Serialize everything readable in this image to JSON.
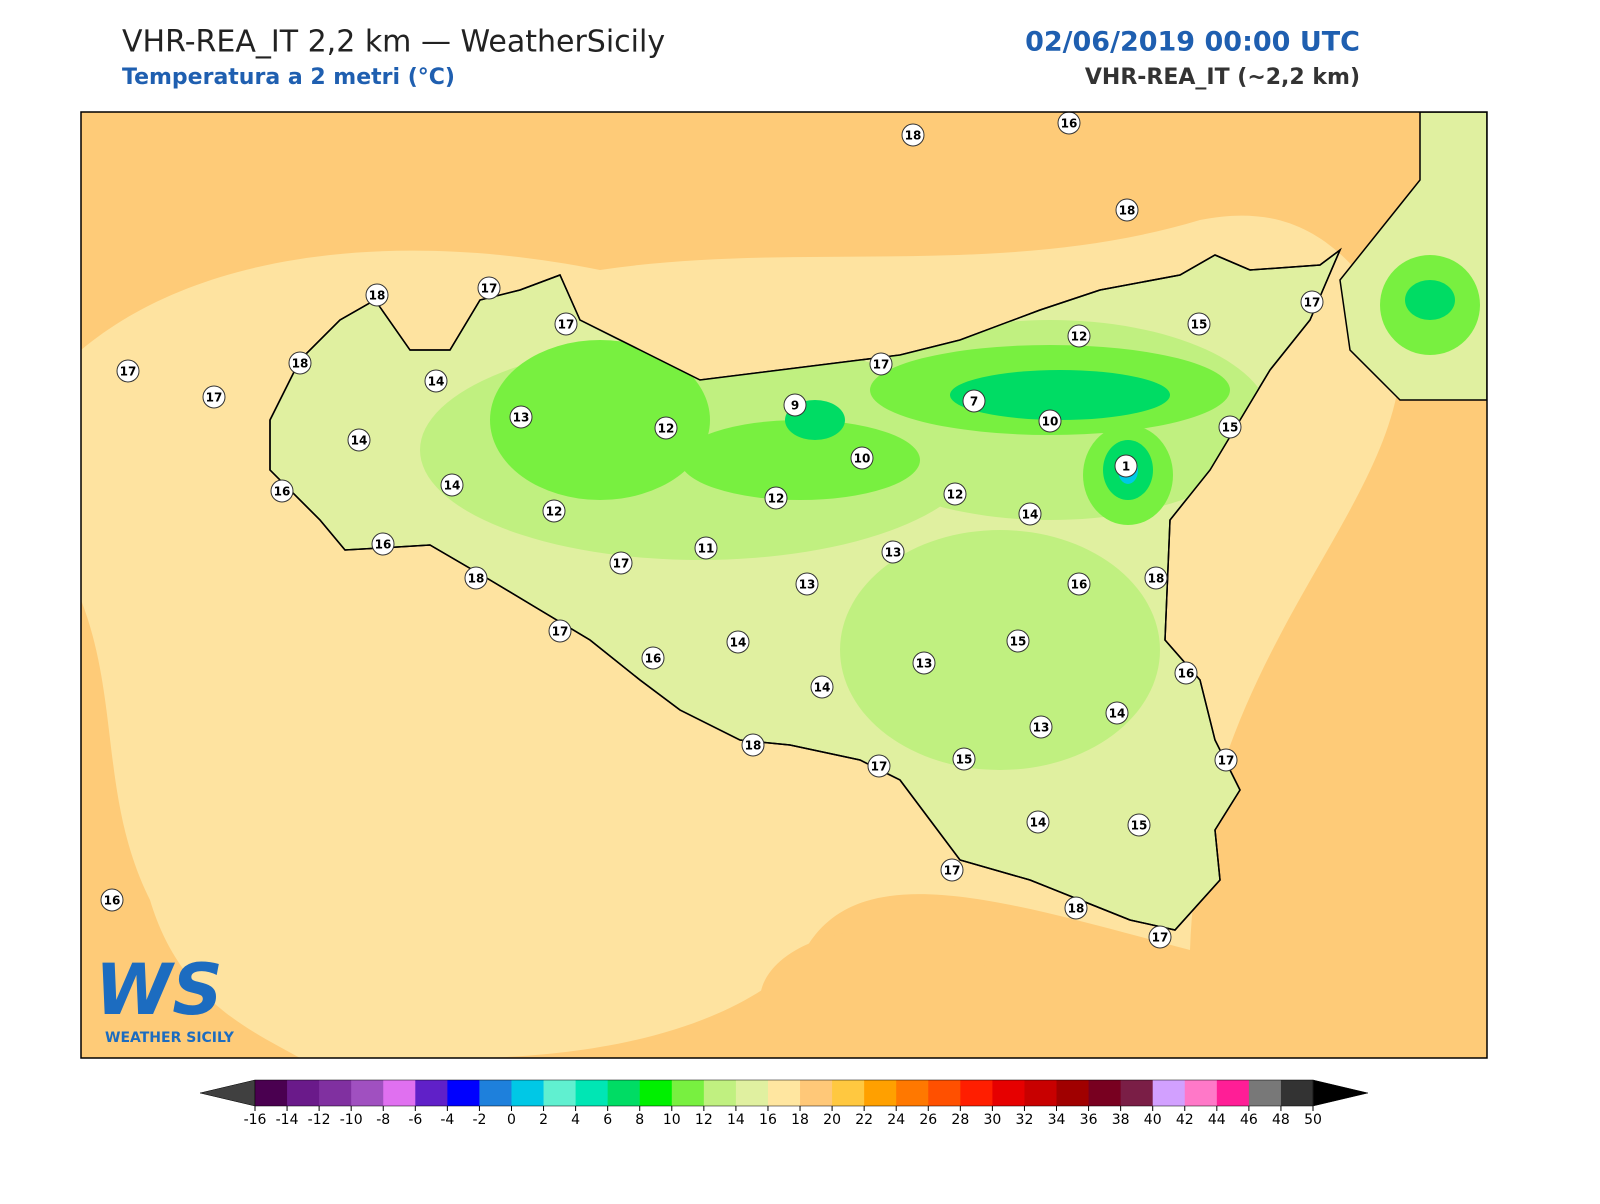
{
  "header": {
    "title": "VHR-REA_IT 2,2 km — WeatherSicily",
    "subtitle": "Temperatura a 2 metri (°C)",
    "datetime": "02/06/2019 00:00 UTC",
    "model": "VHR-REA_IT (~2,2 km)"
  },
  "stations": [
    18,
    16,
    18,
    17,
    15,
    12,
    17,
    7,
    10,
    15,
    1,
    9,
    12,
    10,
    12,
    14,
    12,
    13,
    16,
    18,
    18,
    17,
    17,
    18,
    14,
    17,
    17,
    13,
    14,
    14,
    16,
    12,
    11,
    16,
    17,
    13,
    18,
    17,
    16,
    14,
    14,
    13,
    15,
    16,
    14,
    13,
    15,
    17,
    18,
    17,
    14,
    15,
    17,
    18,
    17,
    16
  ],
  "colorbar": {
    "ticks": [
      -16,
      -14,
      -12,
      -10,
      -8,
      -6,
      -4,
      -2,
      0,
      2,
      4,
      6,
      8,
      10,
      12,
      14,
      16,
      18,
      20,
      22,
      24,
      26,
      28,
      30,
      32,
      34,
      36,
      38,
      40,
      42,
      44,
      46,
      48,
      50
    ],
    "colors": [
      "#4a0050",
      "#6a1a8a",
      "#8030a0",
      "#a050c0",
      "#e070f0",
      "#6020c8",
      "#0000ff",
      "#1e80dc",
      "#00c8e6",
      "#60f0d0",
      "#00e6b4",
      "#00dc64",
      "#00f000",
      "#78f040",
      "#c0f080",
      "#e0f0a0",
      "#ffe6a0",
      "#ffc878",
      "#ffc840",
      "#ffa000",
      "#ff7800",
      "#ff5000",
      "#ff1e00",
      "#e60000",
      "#c80000",
      "#a00000",
      "#780020",
      "#7a1e46",
      "#d2a0ff",
      "#ff78c8",
      "#ff1e96",
      "#787878",
      "#333333"
    ],
    "under_color": "#404040",
    "over_color": "#000000"
  },
  "logo": {
    "mark": "WS",
    "name": "WEATHER SICILY"
  }
}
